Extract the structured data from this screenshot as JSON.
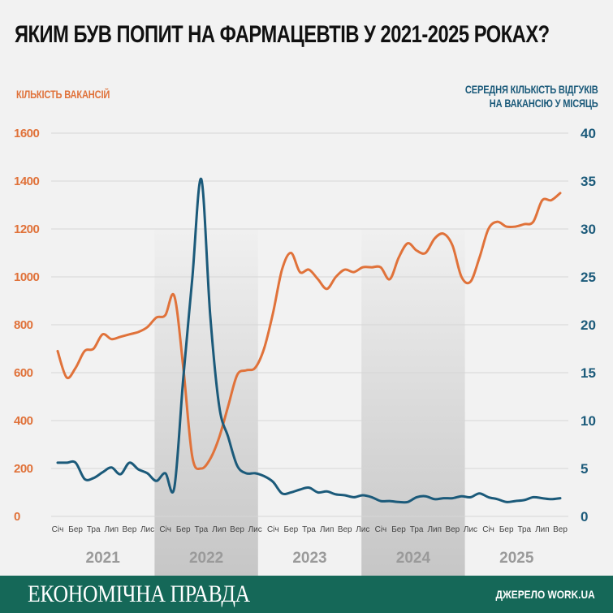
{
  "title": "ЯКИМ БУВ ПОПИТ НА ФАРМАЦЕВТІВ У 2021-2025 РОКАХ?",
  "footer": {
    "brand": "ЕКОНОМІЧНА ПРАВДА",
    "source": "ДЖЕРЕЛО WORK.UA"
  },
  "colors": {
    "vacancies": "#e0723a",
    "responses": "#1b5a7a",
    "footer_bg": "#156858",
    "band": "#c9c9c9"
  },
  "chart_data": {
    "type": "line",
    "title": "ЯКИМ БУВ ПОПИТ НА ФАРМАЦЕВТІВ У 2021-2025 РОКАХ?",
    "grid": true,
    "shaded_years": [
      "2022",
      "2024"
    ],
    "x_ticks": [
      "Січ",
      "Бер",
      "Тра",
      "Лип",
      "Вер",
      "Лис",
      "Січ",
      "Бер",
      "Тра",
      "Лип",
      "Вер",
      "Лис",
      "Січ",
      "Бер",
      "Тра",
      "Лип",
      "Вер",
      "Лис",
      "Січ",
      "Бер",
      "Тра",
      "Лип",
      "Вер",
      "Лис",
      "Січ",
      "Бер",
      "Тра",
      "Лип",
      "Вер"
    ],
    "years": [
      "2021",
      "2022",
      "2023",
      "2024",
      "2025"
    ],
    "y_left": {
      "label": "КІЛЬКІСТЬ ВАКАНСІЙ",
      "range": [
        0,
        1600
      ],
      "ticks": [
        "0",
        "200",
        "400",
        "600",
        "800",
        "1000",
        "1200",
        "1400",
        "1600"
      ]
    },
    "y_right": {
      "label_lines": [
        "СЕРЕДНЯ КІЛЬКІСТЬ ВІДГУКІВ",
        "НА ВАКАНСІЮ У МІСЯЦЬ"
      ],
      "range": [
        0,
        40
      ],
      "ticks": [
        "0",
        "5",
        "10",
        "15",
        "20",
        "25",
        "30",
        "35",
        "40"
      ]
    },
    "series": [
      {
        "axis": "left",
        "color": "#e0723a",
        "values": [
          690,
          580,
          620,
          690,
          700,
          760,
          740,
          750,
          760,
          770,
          790,
          830,
          840,
          920,
          620,
          250,
          200,
          240,
          330,
          460,
          590,
          610,
          620,
          700,
          850,
          1030,
          1100,
          1020,
          1030,
          990,
          950,
          1000,
          1030,
          1020,
          1040,
          1040,
          1040,
          990,
          1080,
          1140,
          1110,
          1100,
          1160,
          1180,
          1130,
          1000,
          980,
          1080,
          1200,
          1230,
          1210,
          1210,
          1220,
          1230,
          1320,
          1320,
          1350
        ]
      },
      {
        "axis": "right",
        "color": "#1b5a7a",
        "values": [
          5.6,
          5.6,
          5.6,
          3.9,
          4.0,
          4.6,
          5.1,
          4.4,
          5.6,
          4.9,
          4.5,
          3.7,
          4.5,
          3.0,
          14.5,
          24.8,
          35.2,
          21.0,
          11.5,
          8.3,
          5.3,
          4.5,
          4.5,
          4.2,
          3.6,
          2.4,
          2.5,
          2.8,
          3.0,
          2.5,
          2.6,
          2.3,
          2.2,
          2.0,
          2.2,
          2.0,
          1.6,
          1.6,
          1.5,
          1.5,
          2.0,
          2.1,
          1.8,
          1.9,
          1.9,
          2.1,
          2.0,
          2.4,
          2.0,
          1.8,
          1.5,
          1.6,
          1.7,
          2.0,
          1.9,
          1.8,
          1.9
        ]
      }
    ]
  }
}
